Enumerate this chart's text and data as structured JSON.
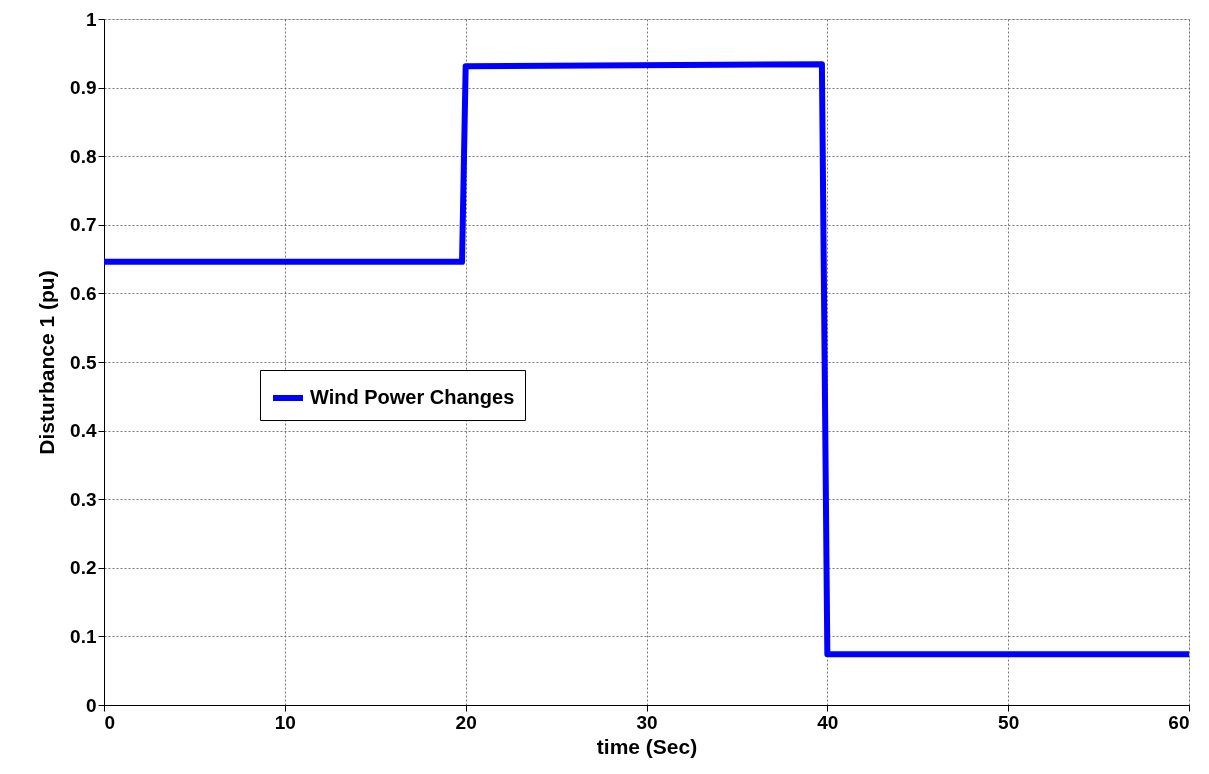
{
  "chart_data": {
    "type": "line",
    "xlabel": "time (Sec)",
    "ylabel": "Disturbance 1 (pu)",
    "x": [
      0,
      19.8,
      20.0,
      39.7,
      40.0,
      60
    ],
    "series": [
      {
        "name": "Wind Power Changes",
        "color": "#0000ff",
        "values": [
          0.646,
          0.646,
          0.931,
          0.934,
          0.074,
          0.074
        ]
      }
    ],
    "xlim": [
      0,
      60
    ],
    "xticks": [
      0,
      10,
      20,
      30,
      40,
      50,
      60
    ],
    "ylim": [
      0,
      1
    ],
    "yticks": [
      0,
      0.1,
      0.2,
      0.3,
      0.4,
      0.5,
      0.6,
      0.7,
      0.8,
      0.9,
      1
    ],
    "grid": true,
    "legend": "left",
    "line_style": "solid",
    "marker": "none"
  }
}
